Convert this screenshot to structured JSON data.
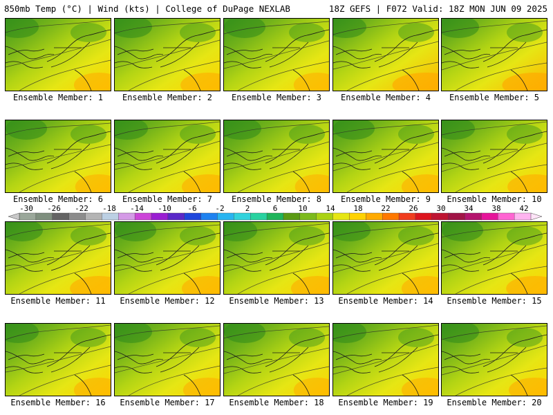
{
  "header": {
    "left": "850mb Temp (°C) | Wind (kts) | College of DuPage NEXLAB",
    "right": "18Z GEFS | F072 Valid: 18Z MON JUN 09 2025"
  },
  "members": [
    {
      "label": "Ensemble Member: 1",
      "warmth": 0.45
    },
    {
      "label": "Ensemble Member: 2",
      "warmth": 0.55
    },
    {
      "label": "Ensemble Member: 3",
      "warmth": 0.4
    },
    {
      "label": "Ensemble Member: 4",
      "warmth": 0.8
    },
    {
      "label": "Ensemble Member: 5",
      "warmth": 0.75
    },
    {
      "label": "Ensemble Member: 6",
      "warmth": 0.4
    },
    {
      "label": "Ensemble Member: 7",
      "warmth": 0.5
    },
    {
      "label": "Ensemble Member: 8",
      "warmth": 0.35
    },
    {
      "label": "Ensemble Member: 9",
      "warmth": 0.45
    },
    {
      "label": "Ensemble Member: 10",
      "warmth": 0.55
    },
    {
      "label": "Ensemble Member: 11",
      "warmth": 0.6
    },
    {
      "label": "Ensemble Member: 12",
      "warmth": 0.5
    },
    {
      "label": "Ensemble Member: 13",
      "warmth": 0.5
    },
    {
      "label": "Ensemble Member: 14",
      "warmth": 0.45
    },
    {
      "label": "Ensemble Member: 15",
      "warmth": 0.6
    },
    {
      "label": "Ensemble Member: 16",
      "warmth": 0.45
    },
    {
      "label": "Ensemble Member: 17",
      "warmth": 0.45
    },
    {
      "label": "Ensemble Member: 18",
      "warmth": 0.4
    },
    {
      "label": "Ensemble Member: 19",
      "warmth": 0.45
    },
    {
      "label": "Ensemble Member: 20",
      "warmth": 0.5
    }
  ],
  "colorbar": {
    "labels": [
      "-30",
      "-26",
      "-22",
      "-18",
      "-14",
      "-10",
      "-6",
      "-2",
      "2",
      "6",
      "10",
      "14",
      "18",
      "22",
      "26",
      "30",
      "34",
      "38",
      "42"
    ],
    "colors": [
      "#9aa79a",
      "#7f8f7f",
      "#646464",
      "#8c8c8c",
      "#b4b4b4",
      "#bcd0e4",
      "#d49ae6",
      "#cc44d8",
      "#9a1ed2",
      "#5a28c8",
      "#1e46dc",
      "#1e82f0",
      "#28b4f0",
      "#32d2dc",
      "#28d2a0",
      "#1eb45a",
      "#5a9a14",
      "#7cba1c",
      "#aad214",
      "#e6e614",
      "#ffd200",
      "#ffaa00",
      "#ff7800",
      "#f03c1e",
      "#dc141e",
      "#be1432",
      "#a01446",
      "#b4146e",
      "#e6149a",
      "#ff64d2",
      "#ffb4f0"
    ]
  }
}
